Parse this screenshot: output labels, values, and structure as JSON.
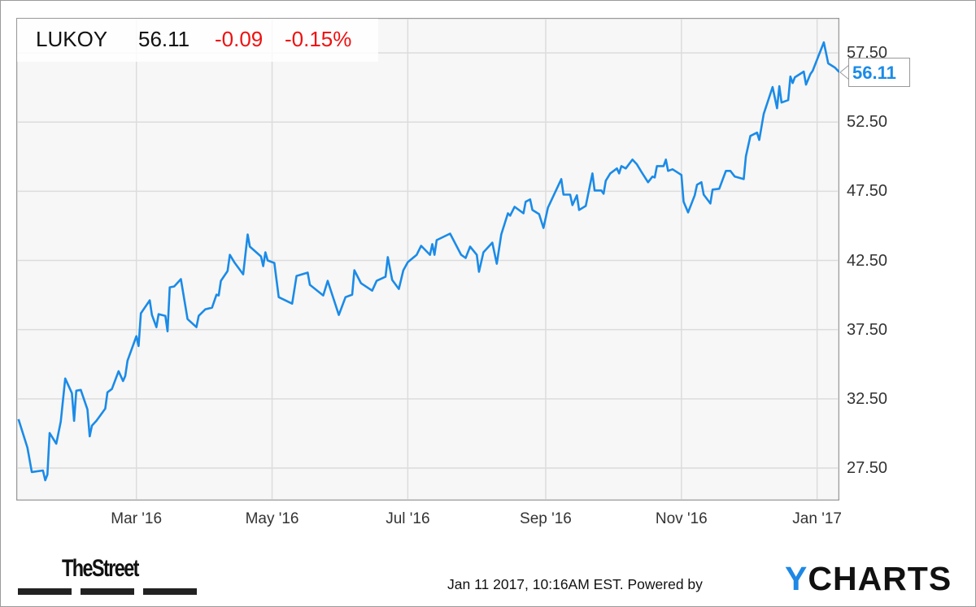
{
  "header": {
    "ticker": "LUKOY",
    "price": "56.11",
    "change": "-0.09",
    "change_pct": "-0.15%"
  },
  "last_value_label": "56.11",
  "footer": {
    "publisher_logo": "TheStreet",
    "timestamp": "Jan 11 2017, 10:16AM EST.",
    "powered_by": "Powered by",
    "provider_logo": "YCHARTS"
  },
  "colors": {
    "line": "#1a8be8",
    "negative": "#f01010",
    "plot_bg": "#f7f7f7",
    "grid": "#dcdcdc",
    "logo_accent": "#1e88e5"
  },
  "chart_data": {
    "type": "line",
    "title": "",
    "xlabel": "",
    "ylabel": "",
    "grid": true,
    "y_axis_side": "right",
    "xlim": [
      "2016-01-07",
      "2017-01-11"
    ],
    "ylim": [
      25.15,
      60.03
    ],
    "y_ticks": [
      "27.50",
      "32.50",
      "37.50",
      "42.50",
      "47.50",
      "52.50",
      "57.50"
    ],
    "x_ticks": [
      {
        "date": "2016-03-01",
        "label": "Mar '16"
      },
      {
        "date": "2016-05-01",
        "label": "May '16"
      },
      {
        "date": "2016-07-01",
        "label": "Jul '16"
      },
      {
        "date": "2016-09-01",
        "label": "Sep '16"
      },
      {
        "date": "2016-11-01",
        "label": "Nov '16"
      },
      {
        "date": "2017-01-01",
        "label": "Jan '17"
      }
    ],
    "series": [
      {
        "x": [
          "2016-01-08",
          "2016-01-12",
          "2016-01-14",
          "2016-01-19",
          "2016-01-20",
          "2016-01-21",
          "2016-01-22",
          "2016-01-25",
          "2016-01-27",
          "2016-01-29",
          "2016-02-01",
          "2016-02-02",
          "2016-02-03",
          "2016-02-05",
          "2016-02-08",
          "2016-02-09",
          "2016-02-10",
          "2016-02-12",
          "2016-02-16",
          "2016-02-17",
          "2016-02-19",
          "2016-02-22",
          "2016-02-24",
          "2016-02-25",
          "2016-02-26",
          "2016-03-01",
          "2016-03-02",
          "2016-03-03",
          "2016-03-07",
          "2016-03-08",
          "2016-03-10",
          "2016-03-11",
          "2016-03-14",
          "2016-03-15",
          "2016-03-16",
          "2016-03-18",
          "2016-03-21",
          "2016-03-24",
          "2016-03-28",
          "2016-03-29",
          "2016-04-01",
          "2016-04-04",
          "2016-04-06",
          "2016-04-07",
          "2016-04-08",
          "2016-04-11",
          "2016-04-12",
          "2016-04-14",
          "2016-04-18",
          "2016-04-20",
          "2016-04-21",
          "2016-04-26",
          "2016-04-27",
          "2016-04-28",
          "2016-04-29",
          "2016-05-02",
          "2016-05-04",
          "2016-05-10",
          "2016-05-12",
          "2016-05-17",
          "2016-05-18",
          "2016-05-24",
          "2016-05-26",
          "2016-05-31",
          "2016-06-03",
          "2016-06-06",
          "2016-06-07",
          "2016-06-10",
          "2016-06-15",
          "2016-06-17",
          "2016-06-21",
          "2016-06-22",
          "2016-06-24",
          "2016-06-27",
          "2016-06-29",
          "2016-07-01",
          "2016-07-05",
          "2016-07-07",
          "2016-07-11",
          "2016-07-12",
          "2016-07-13",
          "2016-07-14",
          "2016-07-20",
          "2016-07-25",
          "2016-07-27",
          "2016-07-29",
          "2016-08-01",
          "2016-08-02",
          "2016-08-04",
          "2016-08-08",
          "2016-08-10",
          "2016-08-12",
          "2016-08-15",
          "2016-08-16",
          "2016-08-18",
          "2016-08-22",
          "2016-08-23",
          "2016-08-25",
          "2016-08-26",
          "2016-08-29",
          "2016-08-31",
          "2016-09-02",
          "2016-09-08",
          "2016-09-09",
          "2016-09-12",
          "2016-09-13",
          "2016-09-15",
          "2016-09-16",
          "2016-09-19",
          "2016-09-22",
          "2016-09-23",
          "2016-09-26",
          "2016-09-27",
          "2016-09-28",
          "2016-09-30",
          "2016-10-03",
          "2016-10-04",
          "2016-10-05",
          "2016-10-07",
          "2016-10-10",
          "2016-10-12",
          "2016-10-14",
          "2016-10-17",
          "2016-10-19",
          "2016-10-20",
          "2016-10-21",
          "2016-10-24",
          "2016-10-25",
          "2016-10-26",
          "2016-10-28",
          "2016-11-01",
          "2016-11-02",
          "2016-11-04",
          "2016-11-07",
          "2016-11-08",
          "2016-11-10",
          "2016-11-11",
          "2016-11-14",
          "2016-11-15",
          "2016-11-18",
          "2016-11-21",
          "2016-11-23",
          "2016-11-25",
          "2016-11-29",
          "2016-11-30",
          "2016-12-02",
          "2016-12-05",
          "2016-12-06",
          "2016-12-08",
          "2016-12-12",
          "2016-12-14",
          "2016-12-15",
          "2016-12-16",
          "2016-12-19",
          "2016-12-20",
          "2016-12-21",
          "2016-12-22",
          "2016-12-26",
          "2016-12-27",
          "2016-12-29",
          "2016-12-30",
          "2017-01-04",
          "2017-01-06",
          "2017-01-09",
          "2017-01-11"
        ],
        "y": [
          31.03,
          28.97,
          27.21,
          27.32,
          26.62,
          27.03,
          30.03,
          29.26,
          30.85,
          33.97,
          32.91,
          30.91,
          33.09,
          33.15,
          31.74,
          29.79,
          30.56,
          30.91,
          31.79,
          32.97,
          33.21,
          34.5,
          33.79,
          34.15,
          35.26,
          37.03,
          36.32,
          38.68,
          39.62,
          38.56,
          37.68,
          38.62,
          38.5,
          37.38,
          40.56,
          40.62,
          41.15,
          38.26,
          37.68,
          38.5,
          38.97,
          39.09,
          40.03,
          39.97,
          41.03,
          41.74,
          42.91,
          42.38,
          41.5,
          44.38,
          43.5,
          42.79,
          42.09,
          43.09,
          42.5,
          42.32,
          39.85,
          39.38,
          41.38,
          41.62,
          40.74,
          39.97,
          41.03,
          38.56,
          39.85,
          40.03,
          41.79,
          40.85,
          40.32,
          41.03,
          41.32,
          42.74,
          41.09,
          40.44,
          41.79,
          42.38,
          42.91,
          43.56,
          42.91,
          43.68,
          42.91,
          43.97,
          44.44,
          42.91,
          42.68,
          43.5,
          42.91,
          41.68,
          43.09,
          43.79,
          42.26,
          44.38,
          45.91,
          45.74,
          46.38,
          45.91,
          46.74,
          46.91,
          46.15,
          45.85,
          44.85,
          46.32,
          48.38,
          47.26,
          47.26,
          46.5,
          47.21,
          46.15,
          46.44,
          48.79,
          47.56,
          47.56,
          47.32,
          48.26,
          48.79,
          49.15,
          48.79,
          49.32,
          49.15,
          49.79,
          49.44,
          48.91,
          48.15,
          48.56,
          48.5,
          49.32,
          49.32,
          49.79,
          48.97,
          49.09,
          48.68,
          46.74,
          45.97,
          47.21,
          47.97,
          48.15,
          47.26,
          46.62,
          47.62,
          47.68,
          48.97,
          48.97,
          48.56,
          48.38,
          50.03,
          51.5,
          51.74,
          51.21,
          53.09,
          55.03,
          53.5,
          55.09,
          53.91,
          54.09,
          55.79,
          55.32,
          55.74,
          56.15,
          55.21,
          55.97,
          56.21,
          58.26,
          56.74,
          56.44,
          56.11
        ]
      }
    ]
  }
}
